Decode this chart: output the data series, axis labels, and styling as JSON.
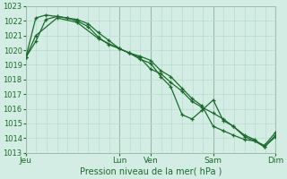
{
  "xlabel": "Pression niveau de la mer( hPa )",
  "bg_color": "#d4ede4",
  "grid_color": "#b8ddd0",
  "line_color": "#1a6b2a",
  "sep_color": "#9abaaa",
  "ylim": [
    1013,
    1023
  ],
  "yticks": [
    1013,
    1014,
    1015,
    1016,
    1017,
    1018,
    1019,
    1020,
    1021,
    1022,
    1023
  ],
  "day_labels": [
    "Jeu",
    "Lun",
    "Ven",
    "Sam",
    "Dim"
  ],
  "day_positions": [
    0.0,
    0.375,
    0.5,
    0.75,
    1.0
  ],
  "series1_x": [
    0.0,
    0.04,
    0.08,
    0.125,
    0.165,
    0.205,
    0.25,
    0.29,
    0.33,
    0.375,
    0.415,
    0.455,
    0.5,
    0.54,
    0.58,
    0.625,
    0.665,
    0.705,
    0.75,
    0.79,
    0.83,
    0.875,
    0.915,
    0.955,
    1.0
  ],
  "series1_y": [
    1019.5,
    1020.6,
    1022.1,
    1022.3,
    1022.2,
    1022.1,
    1021.8,
    1021.2,
    1020.7,
    1020.1,
    1019.8,
    1019.6,
    1019.3,
    1018.6,
    1018.2,
    1017.4,
    1016.7,
    1016.2,
    1014.8,
    1014.5,
    1014.2,
    1013.9,
    1013.8,
    1013.4,
    1014.2
  ],
  "series2_x": [
    0.0,
    0.04,
    0.08,
    0.125,
    0.165,
    0.205,
    0.25,
    0.29,
    0.33,
    0.375,
    0.415,
    0.455,
    0.5,
    0.54,
    0.58,
    0.625,
    0.665,
    0.705,
    0.75,
    0.79,
    0.83,
    0.875,
    0.915,
    0.955,
    1.0
  ],
  "series2_y": [
    1019.5,
    1022.2,
    1022.4,
    1022.3,
    1022.2,
    1022.0,
    1021.6,
    1020.9,
    1020.4,
    1020.1,
    1019.8,
    1019.5,
    1018.7,
    1018.4,
    1017.8,
    1017.2,
    1016.5,
    1016.1,
    1015.7,
    1015.3,
    1014.8,
    1014.2,
    1013.9,
    1013.4,
    1014.1
  ],
  "series3_x": [
    0.0,
    0.04,
    0.125,
    0.205,
    0.29,
    0.375,
    0.415,
    0.455,
    0.5,
    0.54,
    0.58,
    0.625,
    0.665,
    0.705,
    0.75,
    0.79,
    0.83,
    0.875,
    0.915,
    0.955,
    1.0
  ],
  "series3_y": [
    1019.5,
    1021.0,
    1022.2,
    1021.9,
    1020.8,
    1020.1,
    1019.8,
    1019.4,
    1019.1,
    1018.2,
    1017.5,
    1015.6,
    1015.3,
    1015.9,
    1016.6,
    1015.2,
    1014.8,
    1014.1,
    1013.8,
    1013.5,
    1014.4
  ]
}
